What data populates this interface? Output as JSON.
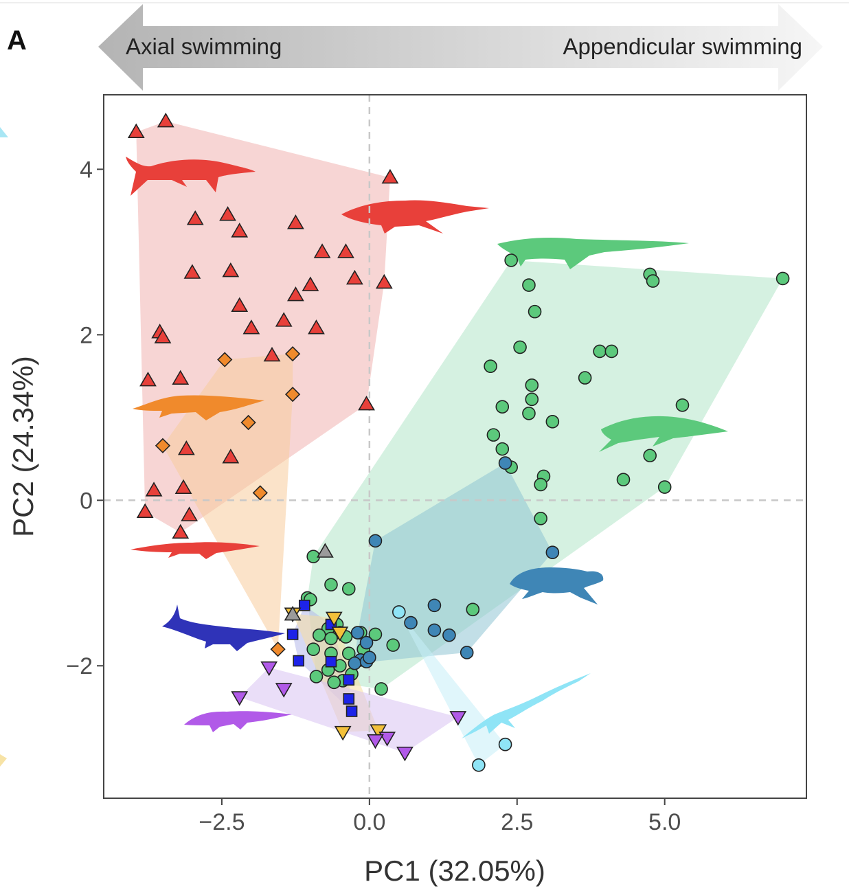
{
  "panel_label": "A",
  "arrow": {
    "left_label": "Axial swimming",
    "right_label": "Appendicular swimming"
  },
  "chart_data": {
    "type": "scatter",
    "title": "",
    "xlabel": "PC1 (32.05%)",
    "ylabel": "PC2 (24.34%)",
    "xlim": [
      -4.5,
      7.4
    ],
    "ylim": [
      -3.6,
      4.9
    ],
    "x_ticks": [
      -2.5,
      0.0,
      2.5,
      5.0
    ],
    "x_tick_labels": [
      "−2.5",
      "0.0",
      "2.5",
      "5.0"
    ],
    "y_ticks": [
      -2,
      0,
      2,
      4
    ],
    "y_tick_labels": [
      "−2",
      "0",
      "2",
      "4"
    ],
    "reference_lines": {
      "x": 0,
      "y": 0,
      "style": "dashed",
      "color": "#c8c8c8"
    },
    "grid": false,
    "legend": "none",
    "series": [
      {
        "marker": "triangle-up",
        "color": "#e8403a",
        "hull_color": "#f0b3b0",
        "x": [
          -3.95,
          -3.45,
          0.35,
          -2.95,
          -2.4,
          -1.25,
          -2.2,
          -0.8,
          -0.4,
          -3.0,
          -2.35,
          -0.25,
          0.25,
          -1.0,
          -1.25,
          -2.2,
          -1.45,
          -0.9,
          -2.0,
          -3.55,
          -3.5,
          -1.65,
          -3.75,
          -3.2,
          -0.05,
          -3.1,
          -2.35,
          -3.65,
          -3.15,
          -3.8,
          -3.05,
          -3.2
        ],
        "y": [
          4.45,
          4.58,
          3.9,
          3.4,
          3.45,
          3.35,
          3.25,
          3.0,
          3.0,
          2.75,
          2.77,
          2.68,
          2.63,
          2.6,
          2.48,
          2.35,
          2.17,
          2.08,
          2.08,
          2.03,
          1.97,
          1.75,
          1.45,
          1.47,
          1.16,
          0.62,
          0.52,
          0.12,
          0.15,
          -0.14,
          -0.18,
          -0.39
        ]
      },
      {
        "marker": "diamond",
        "color": "#f08a2c",
        "hull_color": "#f7cc9c",
        "x": [
          -2.45,
          -1.3,
          -1.3,
          -2.05,
          -3.5,
          -1.85,
          -1.55
        ],
        "y": [
          1.7,
          1.77,
          1.28,
          0.94,
          0.66,
          0.09,
          -1.8
        ]
      },
      {
        "marker": "circle",
        "color": "#5cc97c",
        "hull_color": "#b2e6c8",
        "x": [
          2.4,
          4.75,
          4.8,
          7.0,
          2.7,
          2.8,
          2.55,
          3.9,
          4.1,
          2.05,
          3.65,
          2.75,
          2.75,
          2.25,
          2.7,
          5.3,
          3.1,
          2.1,
          2.25,
          2.4,
          2.95,
          2.9,
          4.3,
          4.75,
          5.0,
          2.9,
          -0.95,
          -0.65,
          -0.35,
          -1.05,
          -1.0,
          -0.7,
          -0.55,
          -0.5,
          -0.85,
          -0.65,
          -0.4,
          -0.15,
          0.1,
          1.75,
          0.4,
          -0.1,
          -0.35,
          -0.65,
          -0.95,
          -0.5,
          -0.7,
          -0.3,
          -0.9,
          -0.45,
          0.2,
          -0.6
        ],
        "y": [
          2.9,
          2.73,
          2.65,
          2.68,
          2.6,
          2.28,
          1.85,
          1.8,
          1.8,
          1.62,
          1.48,
          1.39,
          1.22,
          1.13,
          1.05,
          1.15,
          0.95,
          0.79,
          0.62,
          0.4,
          0.29,
          0.19,
          0.25,
          0.54,
          0.16,
          -0.22,
          -0.68,
          -1.02,
          -1.07,
          -1.18,
          -1.2,
          -1.55,
          -1.5,
          -1.6,
          -1.63,
          -1.67,
          -1.65,
          -1.6,
          -1.62,
          -1.32,
          -1.75,
          -1.8,
          -1.85,
          -1.85,
          -1.8,
          -2.0,
          -2.05,
          -2.1,
          -2.13,
          -2.18,
          -2.28,
          -2.2
        ]
      },
      {
        "marker": "circle",
        "color": "#3f86b6",
        "hull_color": "#8fc4d4",
        "x": [
          2.3,
          0.1,
          3.1,
          1.1,
          0.7,
          1.1,
          1.35,
          1.65,
          -0.2,
          -0.05,
          -0.15,
          -0.25,
          -0.05,
          0.0
        ],
        "y": [
          0.45,
          -0.49,
          -0.63,
          -1.27,
          -1.48,
          -1.57,
          -1.63,
          -1.84,
          -1.6,
          -1.72,
          -1.93,
          -1.97,
          -1.95,
          -1.9
        ]
      },
      {
        "marker": "circle",
        "color": "#8fe4f6",
        "hull_color": "#c6eff8",
        "x": [
          0.5,
          2.3,
          1.85
        ],
        "y": [
          -1.35,
          -2.95,
          -3.2
        ]
      },
      {
        "marker": "square",
        "color": "#1d23e8",
        "hull_color": "#b5b8ea",
        "x": [
          -1.1,
          -1.3,
          -1.2,
          -0.65,
          -0.35,
          -0.35,
          -0.3,
          -0.65
        ],
        "y": [
          -1.27,
          -1.62,
          -1.94,
          -1.95,
          -2.17,
          -2.4,
          -2.55,
          -1.5
        ]
      },
      {
        "marker": "triangle-down",
        "color": "#f3c13a",
        "hull_color": "#f8dea0",
        "x": [
          -0.6,
          -0.5,
          -0.45,
          0.15,
          -1.3
        ],
        "y": [
          -1.42,
          -1.6,
          -2.8,
          -2.78,
          -1.37
        ]
      },
      {
        "marker": "triangle-down",
        "color": "#b15ae8",
        "hull_color": "#d9c2f3",
        "x": [
          -1.7,
          -1.45,
          -2.2,
          1.5,
          0.3,
          0.1,
          0.6
        ],
        "y": [
          -2.02,
          -2.28,
          -2.38,
          -2.62,
          -2.87,
          -2.9,
          -3.05
        ]
      },
      {
        "marker": "triangle-up",
        "color": "#9b9b9b",
        "hull_color": "#d6d6d6",
        "x": [
          -0.75,
          -1.3
        ],
        "y": [
          -0.62,
          -1.38
        ]
      }
    ]
  },
  "silhouettes": [
    {
      "name": "ichthyosaur-silhouette",
      "color": "#e8403a"
    },
    {
      "name": "plesiosaur-silhouette",
      "color": "#e8403a"
    },
    {
      "name": "crocodile-silhouette",
      "color": "#5cc97c"
    },
    {
      "name": "mosasaur-orange-silhouette",
      "color": "#f08a2c"
    },
    {
      "name": "pliosaur-green-silhouette",
      "color": "#5cc97c"
    },
    {
      "name": "small-reptile-red-silhouette",
      "color": "#e8403a"
    },
    {
      "name": "turtle-silhouette",
      "color": "#3f86b6"
    },
    {
      "name": "ichthyosaur-blue-silhouette",
      "color": "#2f33b8"
    },
    {
      "name": "lizard-purple-silhouette",
      "color": "#b15ae8"
    },
    {
      "name": "longneck-lightblue-silhouette",
      "color": "#8fe4f6"
    }
  ]
}
